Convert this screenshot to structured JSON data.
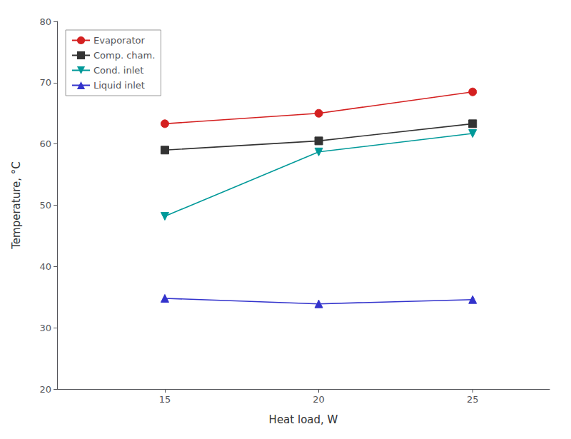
{
  "chart_data": {
    "type": "line",
    "xlabel": "Heat load, W",
    "ylabel": "Temperature, °C",
    "x": [
      15,
      20,
      25
    ],
    "series": [
      {
        "name": "Evaporator",
        "color": "#d42020",
        "marker": "circle",
        "values": [
          63.3,
          65.0,
          68.5
        ]
      },
      {
        "name": "Comp. cham.",
        "color": "#333333",
        "marker": "square",
        "values": [
          59.0,
          60.5,
          63.3
        ]
      },
      {
        "name": "Cond. inlet",
        "color": "#009999",
        "marker": "triangle_down",
        "values": [
          48.2,
          58.7,
          61.7
        ]
      },
      {
        "name": "Liquid inlet",
        "color": "#3333cc",
        "marker": "triangle_up",
        "values": [
          34.8,
          33.9,
          34.6
        ]
      }
    ],
    "xlim": [
      11.5,
      27.5
    ],
    "ylim": [
      20,
      80
    ],
    "xticks": [
      15,
      20,
      25
    ],
    "yticks": [
      20,
      30,
      40,
      50,
      60,
      70,
      80
    ],
    "grid": false,
    "legend": "upper left"
  }
}
